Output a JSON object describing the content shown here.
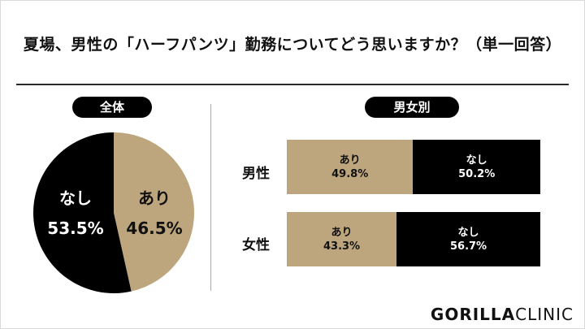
{
  "title": "夏場、男性の「ハーフパンツ」勤務についてどう思いますか？（単一回答）",
  "logo": {
    "bold": "GORILLA",
    "light": "CLINIC"
  },
  "colors": {
    "yes": "#bda67d",
    "no": "#000000"
  },
  "chart_data": [
    {
      "type": "pie",
      "title": "全体",
      "slices": [
        {
          "label": "あり",
          "value": 46.5,
          "display": "46.5%",
          "color": "#bda67d"
        },
        {
          "label": "なし",
          "value": 53.5,
          "display": "53.5%",
          "color": "#000000"
        }
      ]
    },
    {
      "type": "bar",
      "title": "男女別",
      "stacked": true,
      "orientation": "horizontal",
      "categories": [
        "男性",
        "女性"
      ],
      "series": [
        {
          "name": "あり",
          "values": [
            49.8,
            43.3
          ],
          "display": [
            "49.8%",
            "43.3%"
          ],
          "color": "#bda67d"
        },
        {
          "name": "なし",
          "values": [
            50.2,
            56.7
          ],
          "display": [
            "50.2%",
            "56.7%"
          ],
          "color": "#000000"
        }
      ]
    }
  ]
}
